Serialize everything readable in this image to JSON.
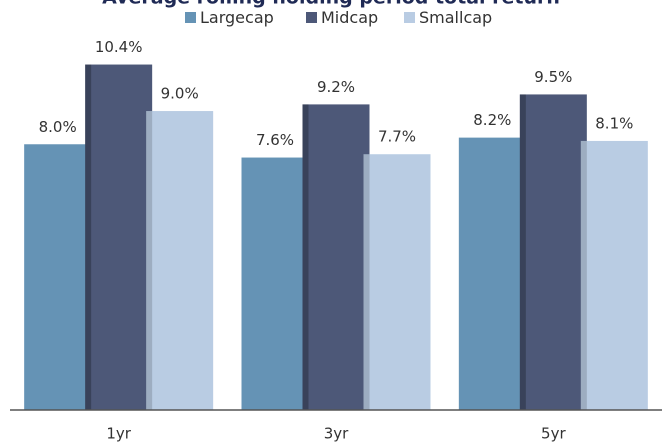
{
  "chart_data": {
    "type": "bar",
    "title": "Average rolling holding period total return",
    "categories": [
      "1yr",
      "3yr",
      "5yr"
    ],
    "series": [
      {
        "name": "Largecap",
        "color": "#6593b5",
        "values": [
          8.0,
          7.6,
          8.2
        ],
        "value_labels": [
          "8.0%",
          "7.6%",
          "8.2%"
        ]
      },
      {
        "name": "Midcap",
        "color": "#4d5878",
        "values": [
          10.4,
          9.2,
          9.5
        ],
        "value_labels": [
          "10.4%",
          "9.2%",
          "9.5%"
        ]
      },
      {
        "name": "Smallcap",
        "color": "#b9cce3",
        "values": [
          9.0,
          7.7,
          8.1
        ],
        "value_labels": [
          "9.0%",
          "7.7%",
          "8.1%"
        ]
      }
    ],
    "ylim": [
      0,
      11.5
    ],
    "legend": "top"
  }
}
